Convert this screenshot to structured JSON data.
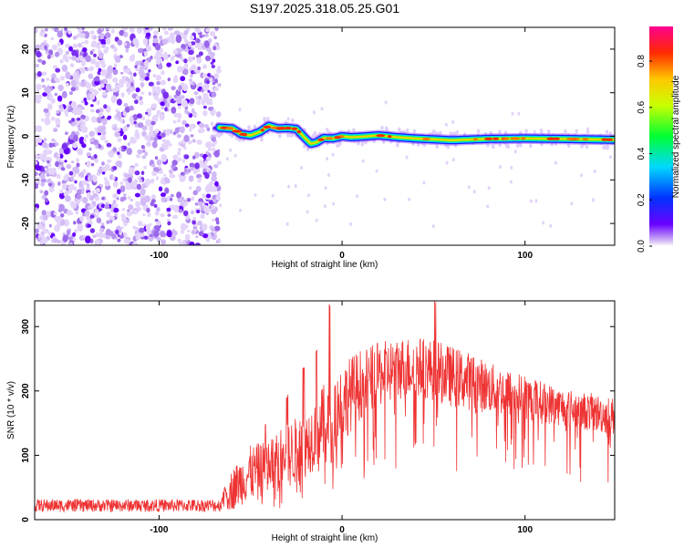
{
  "chart_data": [
    {
      "type": "heatmap",
      "title": "S197.2025.318.05.25.G01",
      "xlabel": "Height of straight line (km)",
      "ylabel": "Frequency (Hz)",
      "xlim": [
        -168,
        149
      ],
      "ylim": [
        -25,
        25
      ],
      "xticks": [
        -100,
        0,
        100
      ],
      "yticks": [
        -20,
        -10,
        0,
        10,
        20
      ],
      "noise_region_x": [
        -168,
        -67
      ],
      "track": {
        "x": [
          -67,
          -60,
          -55,
          -50,
          -45,
          -40,
          -35,
          -30,
          -25,
          -20,
          -17,
          -14,
          -10,
          -5,
          0,
          5,
          10,
          20,
          30,
          40,
          60,
          80,
          100,
          120,
          149
        ],
        "y": [
          2,
          1.8,
          0.5,
          0.2,
          1,
          2.4,
          1.8,
          1.9,
          1.7,
          -0.5,
          -1.7,
          -1.4,
          -0.4,
          -0.5,
          0,
          -0.2,
          -0.1,
          0.2,
          -0.2,
          -0.5,
          -0.9,
          -0.6,
          -0.5,
          -0.6,
          -0.8
        ]
      },
      "colorbar": {
        "label": "Normalized spectral amplitude",
        "range": [
          0,
          0.95
        ],
        "ticks": [
          "0.0",
          "0.2",
          "0.4",
          "0.6",
          "0.8"
        ]
      }
    },
    {
      "type": "line",
      "xlabel": "Height of straight line (km)",
      "ylabel": "SNR (10 * v/v)",
      "xlim": [
        -168,
        149
      ],
      "ylim": [
        0,
        340
      ],
      "xticks": [
        -100,
        0,
        100
      ],
      "yticks": [
        0,
        100,
        200,
        300
      ],
      "color": "#ee3333",
      "envelope": {
        "x": [
          -168,
          -140,
          -100,
          -67,
          -60,
          -50,
          -40,
          -30,
          -20,
          -10,
          0,
          10,
          20,
          30,
          40,
          50,
          60,
          70,
          80,
          90,
          100,
          110,
          120,
          130,
          140,
          149
        ],
        "low": [
          12,
          12,
          12,
          12,
          15,
          30,
          35,
          45,
          65,
          90,
          120,
          155,
          175,
          185,
          190,
          185,
          175,
          170,
          165,
          160,
          155,
          150,
          145,
          140,
          135,
          130
        ],
        "high": [
          32,
          32,
          32,
          32,
          80,
          115,
          125,
          150,
          170,
          210,
          245,
          265,
          275,
          285,
          285,
          280,
          270,
          260,
          245,
          235,
          225,
          215,
          205,
          200,
          195,
          190
        ]
      },
      "spikes": [
        {
          "x": -64,
          "y": 50
        },
        {
          "x": -42,
          "y": 150
        },
        {
          "x": -30,
          "y": 195
        },
        {
          "x": -21,
          "y": 240
        },
        {
          "x": -14,
          "y": 265
        },
        {
          "x": -7,
          "y": 340
        },
        {
          "x": 51,
          "y": 345
        }
      ]
    }
  ]
}
